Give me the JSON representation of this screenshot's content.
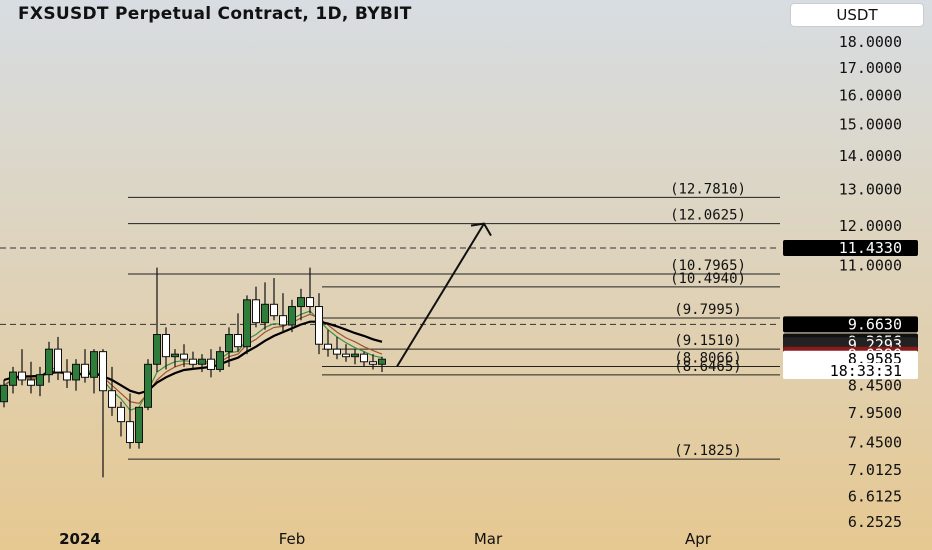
{
  "header": {
    "title": "FXSUSDT Perpetual Contract, 1D, BYBIT",
    "unit": "USDT"
  },
  "chart_data": {
    "type": "candlestick",
    "y_scale": "log",
    "ylim": [
      6.15,
      19.2
    ],
    "price_ticks": [
      "18.0000",
      "17.0000",
      "16.0000",
      "15.0000",
      "14.0000",
      "13.0000",
      "12.0000",
      "11.0000",
      "8.4500",
      "7.9500",
      "7.4500",
      "7.0125",
      "6.6125",
      "6.2525"
    ],
    "x_ticks": [
      "2024",
      "Feb",
      "Mar",
      "Apr"
    ],
    "candles": [
      {
        "o": 8.15,
        "h": 8.55,
        "l": 8.05,
        "c": 8.45
      },
      {
        "o": 8.45,
        "h": 8.8,
        "l": 8.3,
        "c": 8.7
      },
      {
        "o": 8.7,
        "h": 9.15,
        "l": 8.45,
        "c": 8.55
      },
      {
        "o": 8.55,
        "h": 8.9,
        "l": 8.3,
        "c": 8.45
      },
      {
        "o": 8.45,
        "h": 8.8,
        "l": 8.25,
        "c": 8.65
      },
      {
        "o": 8.65,
        "h": 9.3,
        "l": 8.5,
        "c": 9.15
      },
      {
        "o": 9.15,
        "h": 9.4,
        "l": 8.55,
        "c": 8.7
      },
      {
        "o": 8.7,
        "h": 8.95,
        "l": 8.4,
        "c": 8.55
      },
      {
        "o": 8.55,
        "h": 8.95,
        "l": 8.35,
        "c": 8.85
      },
      {
        "o": 8.85,
        "h": 9.15,
        "l": 8.5,
        "c": 8.6
      },
      {
        "o": 8.6,
        "h": 9.15,
        "l": 8.3,
        "c": 9.1
      },
      {
        "o": 9.1,
        "h": 9.15,
        "l": 6.9,
        "c": 8.35
      },
      {
        "o": 8.35,
        "h": 8.8,
        "l": 7.9,
        "c": 8.05
      },
      {
        "o": 8.05,
        "h": 8.15,
        "l": 7.55,
        "c": 7.8
      },
      {
        "o": 7.8,
        "h": 8.3,
        "l": 7.35,
        "c": 7.45
      },
      {
        "o": 7.45,
        "h": 8.05,
        "l": 7.35,
        "c": 8.05
      },
      {
        "o": 8.05,
        "h": 8.95,
        "l": 8.0,
        "c": 8.85
      },
      {
        "o": 8.85,
        "h": 10.95,
        "l": 8.7,
        "c": 9.45
      },
      {
        "o": 9.45,
        "h": 9.6,
        "l": 8.75,
        "c": 9.0
      },
      {
        "o": 9.0,
        "h": 9.15,
        "l": 8.8,
        "c": 9.05
      },
      {
        "o": 9.05,
        "h": 9.25,
        "l": 8.8,
        "c": 8.95
      },
      {
        "o": 8.95,
        "h": 9.1,
        "l": 8.75,
        "c": 8.85
      },
      {
        "o": 8.85,
        "h": 9.05,
        "l": 8.7,
        "c": 8.95
      },
      {
        "o": 8.95,
        "h": 9.15,
        "l": 8.6,
        "c": 8.75
      },
      {
        "o": 8.75,
        "h": 9.2,
        "l": 8.7,
        "c": 9.1
      },
      {
        "o": 9.1,
        "h": 9.6,
        "l": 8.8,
        "c": 9.45
      },
      {
        "o": 9.45,
        "h": 9.9,
        "l": 9.1,
        "c": 9.2
      },
      {
        "o": 9.2,
        "h": 10.3,
        "l": 9.05,
        "c": 10.2
      },
      {
        "o": 10.2,
        "h": 10.5,
        "l": 9.6,
        "c": 9.7
      },
      {
        "o": 9.7,
        "h": 10.6,
        "l": 9.55,
        "c": 10.1
      },
      {
        "o": 10.1,
        "h": 10.7,
        "l": 9.75,
        "c": 9.85
      },
      {
        "o": 9.85,
        "h": 10.35,
        "l": 9.5,
        "c": 9.65
      },
      {
        "o": 9.65,
        "h": 10.2,
        "l": 9.5,
        "c": 10.05
      },
      {
        "o": 10.05,
        "h": 10.45,
        "l": 9.75,
        "c": 10.25
      },
      {
        "o": 10.25,
        "h": 10.95,
        "l": 9.9,
        "c": 10.05
      },
      {
        "o": 10.05,
        "h": 10.35,
        "l": 9.05,
        "c": 9.25
      },
      {
        "o": 9.25,
        "h": 9.55,
        "l": 9.0,
        "c": 9.15
      },
      {
        "o": 9.15,
        "h": 9.4,
        "l": 8.95,
        "c": 9.05
      },
      {
        "o": 9.05,
        "h": 9.25,
        "l": 8.9,
        "c": 9.0
      },
      {
        "o": 9.0,
        "h": 9.15,
        "l": 8.85,
        "c": 9.05
      },
      {
        "o": 9.05,
        "h": 9.1,
        "l": 8.8,
        "c": 8.9
      },
      {
        "o": 8.9,
        "h": 9.05,
        "l": 8.75,
        "c": 8.85
      },
      {
        "o": 8.85,
        "h": 9.0,
        "l": 8.7,
        "c": 8.95
      }
    ],
    "sma_black": [
      8.55,
      8.6,
      8.62,
      8.62,
      8.63,
      8.68,
      8.7,
      8.68,
      8.66,
      8.66,
      8.68,
      8.62,
      8.55,
      8.45,
      8.35,
      8.3,
      8.35,
      8.5,
      8.6,
      8.68,
      8.74,
      8.76,
      8.78,
      8.8,
      8.85,
      8.92,
      8.98,
      9.1,
      9.2,
      9.32,
      9.42,
      9.5,
      9.58,
      9.66,
      9.72,
      9.72,
      9.68,
      9.62,
      9.55,
      9.48,
      9.42,
      9.35,
      9.3
    ],
    "sma_orange": [
      8.45,
      8.55,
      8.6,
      8.58,
      8.6,
      8.72,
      8.72,
      8.65,
      8.66,
      8.64,
      8.72,
      8.6,
      8.45,
      8.3,
      8.15,
      8.12,
      8.3,
      8.55,
      8.7,
      8.8,
      8.86,
      8.86,
      8.88,
      8.86,
      8.9,
      9.0,
      9.05,
      9.25,
      9.35,
      9.5,
      9.6,
      9.62,
      9.7,
      9.8,
      9.88,
      9.8,
      9.65,
      9.5,
      9.38,
      9.3,
      9.2,
      9.12,
      9.05
    ],
    "sma_green": [
      8.45,
      8.58,
      8.6,
      8.55,
      8.58,
      8.78,
      8.76,
      8.64,
      8.7,
      8.65,
      8.78,
      8.55,
      8.35,
      8.2,
      8.0,
      8.05,
      8.35,
      8.7,
      8.82,
      8.9,
      8.92,
      8.9,
      8.92,
      8.88,
      8.95,
      9.08,
      9.1,
      9.35,
      9.45,
      9.6,
      9.68,
      9.66,
      9.78,
      9.88,
      9.95,
      9.75,
      9.55,
      9.4,
      9.28,
      9.18,
      9.1,
      9.02,
      8.98
    ],
    "levels": [
      {
        "label": "(12.7810)",
        "value": 12.781
      },
      {
        "label": "(12.0625)",
        "value": 12.0625
      },
      {
        "label": "(10.7965)",
        "value": 10.7965
      },
      {
        "label": "(10.4940)",
        "value": 10.494
      },
      {
        "label": "(9.7995)",
        "value": 9.7995
      },
      {
        "label": "(9.1510)",
        "value": 9.151
      },
      {
        "label": "(8.8066)",
        "value": 8.8066
      },
      {
        "label": "(8.6465)",
        "value": 8.6465
      },
      {
        "label": "(7.1825)",
        "value": 7.1825
      }
    ],
    "dashed_levels": [
      11.433,
      9.663
    ],
    "projection": {
      "from": 8.8066,
      "to": 12.0625
    },
    "price_tags": [
      {
        "text": "11.4330",
        "value": 11.433,
        "bg": "#000000",
        "fg": "#ffffff"
      },
      {
        "text": "9.6630",
        "value": 9.663,
        "bg": "#000000",
        "fg": "#ffffff"
      },
      {
        "text": "9.3056",
        "value": 9.3056,
        "bg": "#111111",
        "fg": "#ffffff"
      },
      {
        "text": "9.2293",
        "value": 9.2293,
        "bg": "#222222",
        "fg": "#ffffff"
      },
      {
        "text": "9.0390",
        "value": 9.039,
        "bg": "#8b1a1a",
        "fg": "#ffffff"
      },
      {
        "text": "8.9585",
        "value": 8.9585,
        "bg": "#ffffff",
        "fg": "#000000"
      },
      {
        "text": "18:33:31",
        "value": 8.72,
        "bg": "#ffffff",
        "fg": "#000000"
      }
    ],
    "colors": {
      "up": "#2e7d3a",
      "down": "#ffffff",
      "wick": "#111111",
      "sma_black": "#000000",
      "sma_orange": "#a0522d",
      "sma_green": "#3f8f3f",
      "level": "#222222",
      "bg_top": "#d7dde2",
      "bg_bottom": "#e6c891"
    }
  }
}
